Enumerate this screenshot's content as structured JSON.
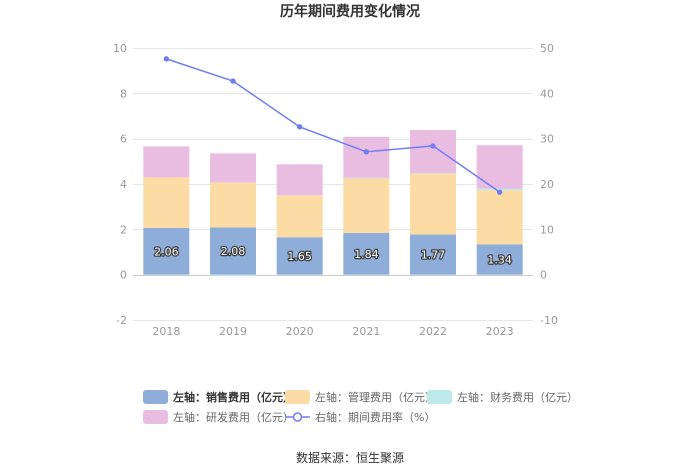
{
  "chart_data": {
    "type": "bar",
    "title": "历年期间费用变化情况",
    "categories": [
      "2018",
      "2019",
      "2020",
      "2021",
      "2022",
      "2023"
    ],
    "y_left": {
      "min": -2,
      "max": 10,
      "ticks": [
        -2,
        0,
        2,
        4,
        6,
        8,
        10
      ]
    },
    "y_right": {
      "min": -10,
      "max": 50,
      "ticks": [
        -10,
        0,
        10,
        20,
        30,
        40,
        50
      ]
    },
    "legend_position": "bottom",
    "series": [
      {
        "name": "左轴：销售费用（亿元）",
        "type": "bar",
        "y_axis": 0,
        "color": "#8fadd9",
        "values": [
          2.06,
          2.08,
          1.65,
          1.84,
          1.77,
          1.34
        ]
      },
      {
        "name": "左轴：管理费用（亿元）",
        "type": "bar",
        "y_axis": 0,
        "color": "#fcdba4",
        "values": [
          2.23,
          1.99,
          1.85,
          2.41,
          2.7,
          2.38
        ]
      },
      {
        "name": "左轴：财务费用（亿元）",
        "type": "bar",
        "y_axis": 0,
        "color": "#bdeae8",
        "values": [
          -0.03,
          -0.05,
          -0.02,
          0.02,
          0.01,
          0.07
        ]
      },
      {
        "name": "左轴：研发费用（亿元）",
        "type": "bar",
        "y_axis": 0,
        "color": "#e9bde1",
        "values": [
          1.37,
          1.28,
          1.37,
          1.81,
          1.9,
          1.92
        ]
      },
      {
        "name": "右轴：期间费用率（%）",
        "type": "line",
        "y_axis": 1,
        "color": "#6f7ef2",
        "values": [
          47.6,
          42.7,
          32.6,
          27.1,
          28.4,
          18.2
        ]
      }
    ]
  },
  "source": "数据来源：恒生聚源"
}
